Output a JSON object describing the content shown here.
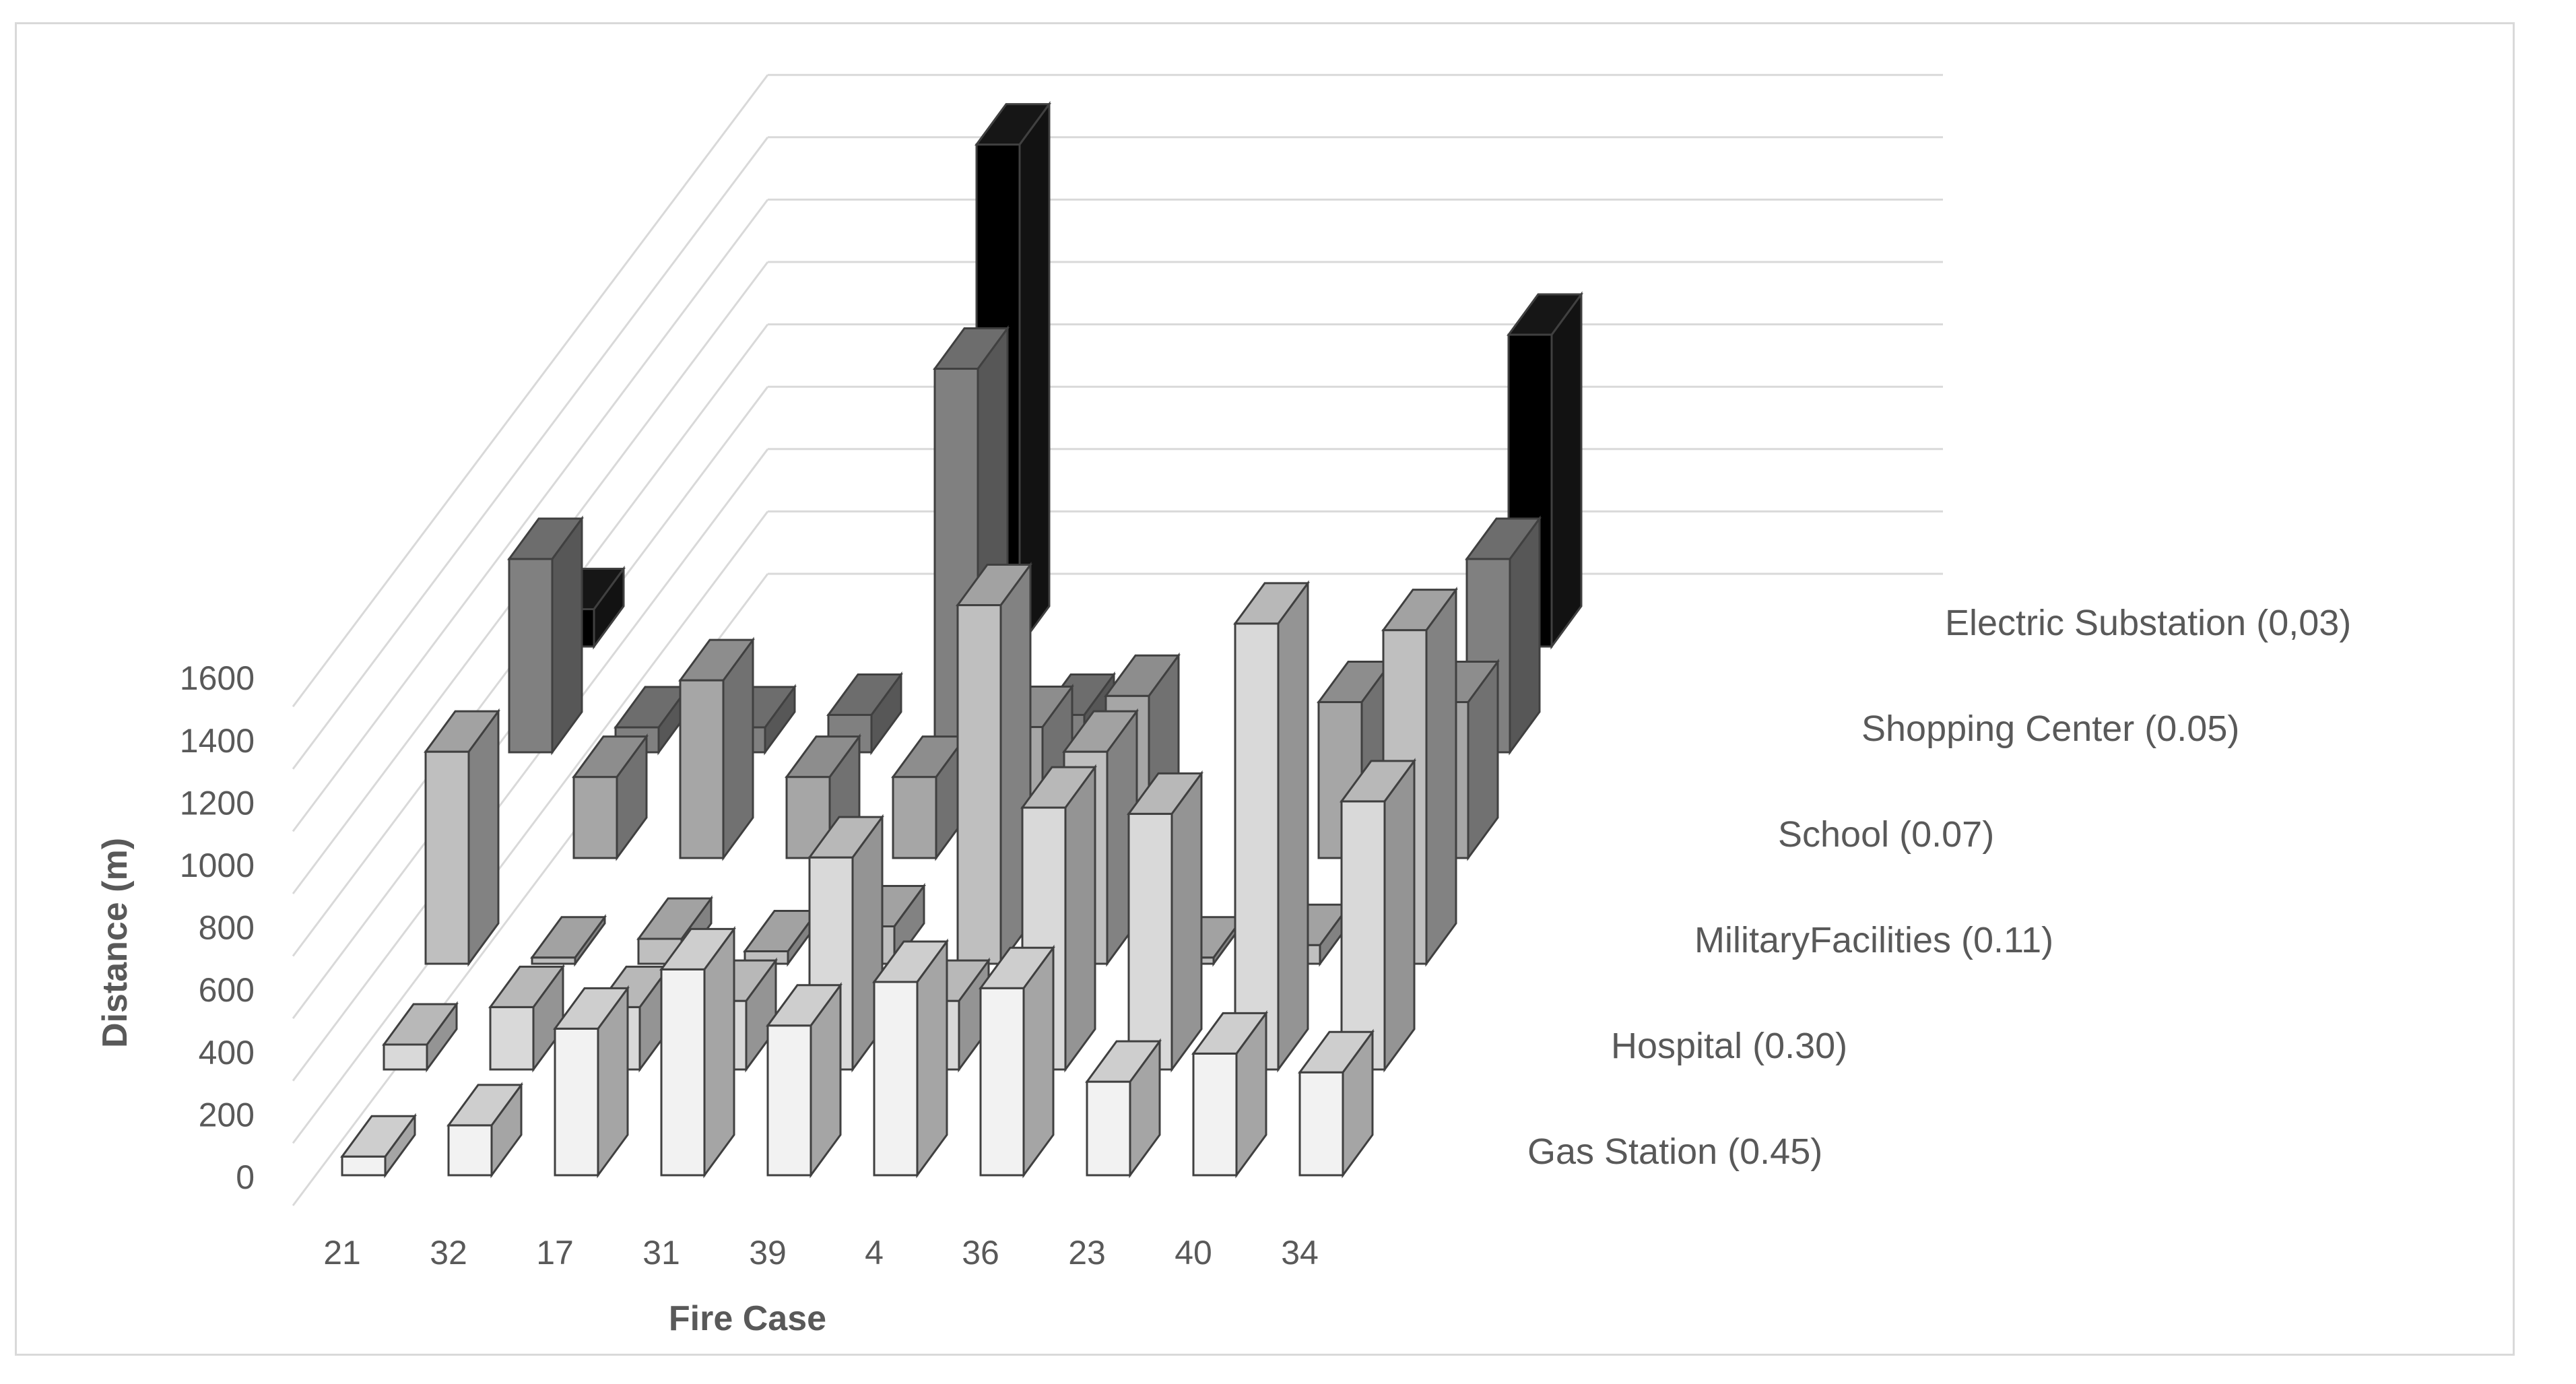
{
  "chart_data": {
    "type": "bar",
    "subtype": "3d-column",
    "title": "",
    "xlabel": "Fire Case",
    "ylabel": "Distance (m)",
    "ylim": [
      0,
      1600
    ],
    "yticks": [
      0,
      200,
      400,
      600,
      800,
      1000,
      1200,
      1400,
      1600
    ],
    "grid": true,
    "categories": [
      "21",
      "32",
      "17",
      "31",
      "39",
      "4",
      "36",
      "23",
      "40",
      "34"
    ],
    "series": [
      {
        "name": "Gas Station (0.45)",
        "color": "#f2f2f2",
        "values": [
          60,
          160,
          470,
          660,
          480,
          620,
          600,
          300,
          390,
          330
        ]
      },
      {
        "name": "Hospital (0.30)",
        "color": "#d9d9d9",
        "values": [
          80,
          200,
          200,
          220,
          680,
          220,
          840,
          820,
          1430,
          860
        ]
      },
      {
        "name": "MilitaryFacilities (0.11)",
        "color": "#bfbfbf",
        "values": [
          680,
          20,
          80,
          40,
          120,
          1150,
          680,
          20,
          60,
          1070
        ]
      },
      {
        "name": "School (0.07)",
        "color": "#a6a6a6",
        "values": [
          0,
          260,
          570,
          260,
          260,
          420,
          520,
          0,
          500,
          500
        ]
      },
      {
        "name": "Shopping Center (0.05)",
        "color": "#808080",
        "values": [
          620,
          80,
          80,
          120,
          1230,
          120,
          0,
          0,
          0,
          620
        ]
      },
      {
        "name": "Electric Substation (0,03)",
        "color": "#000000",
        "values": [
          120,
          0,
          0,
          0,
          1610,
          0,
          0,
          0,
          0,
          1000
        ]
      }
    ]
  }
}
